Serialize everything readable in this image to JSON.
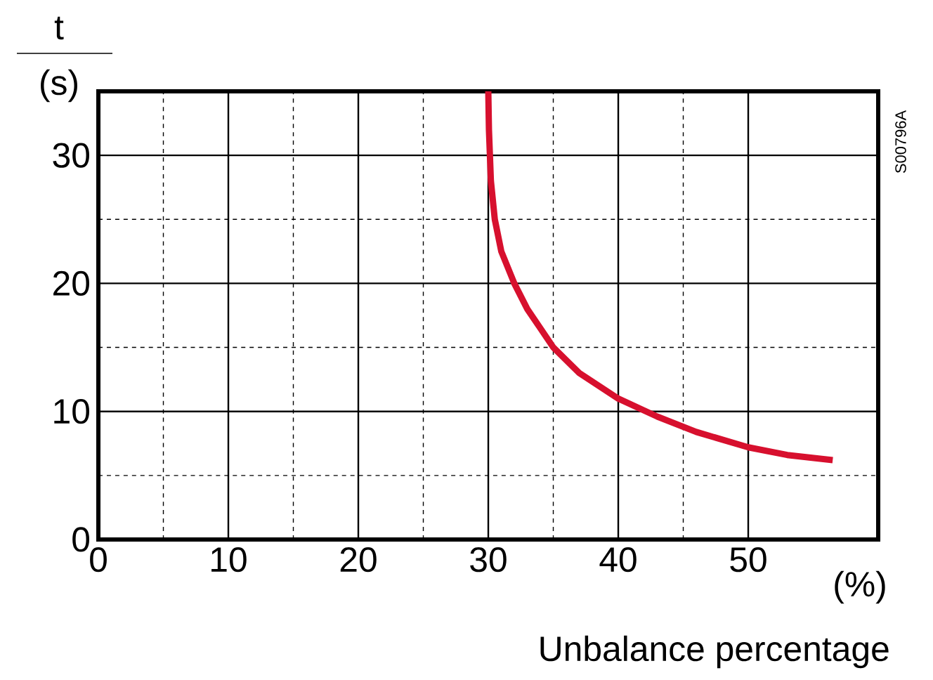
{
  "chart_data": {
    "type": "line",
    "ylabel": "t",
    "xlabel": "Unbalance percentage",
    "annotations": [
      "(s)",
      "(%)",
      "S00796A"
    ],
    "x": [
      30,
      30.05,
      30.2,
      30.5,
      31,
      32,
      33,
      34,
      35,
      37,
      40,
      43,
      46,
      50,
      53,
      56.5
    ],
    "series": [
      {
        "color": "#d7102e",
        "values": [
          35,
          32,
          28,
          25,
          22.5,
          20,
          18,
          16.5,
          15,
          13,
          11,
          9.6,
          8.4,
          7.2,
          6.6,
          6.2
        ]
      }
    ],
    "xlim": [
      0,
      60
    ],
    "ylim": [
      0,
      35
    ],
    "xticks": [
      0,
      10,
      20,
      30,
      40,
      50
    ],
    "yticks": [
      0,
      10,
      20,
      30
    ],
    "grid": true,
    "marker": "none",
    "line_style": "solid"
  }
}
